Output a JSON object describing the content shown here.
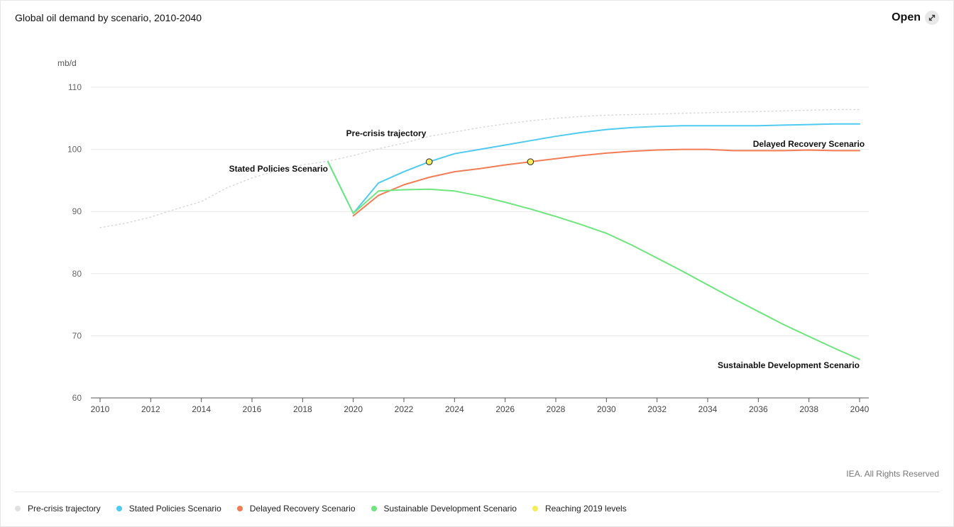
{
  "header": {
    "title": "Global oil demand by scenario, 2010-2040",
    "open_label": "Open"
  },
  "footer": {
    "credit": "IEA. All Rights Reserved"
  },
  "icons": {
    "open": "expand-arrows-icon"
  },
  "chart_data": {
    "type": "line",
    "title": "Global oil demand by scenario, 2010-2040",
    "ylabel": "mb/d",
    "xlabel": "",
    "xlim": [
      2010,
      2040
    ],
    "ylim": [
      60,
      110
    ],
    "xticks": [
      2010,
      2012,
      2014,
      2016,
      2018,
      2020,
      2022,
      2024,
      2026,
      2028,
      2030,
      2032,
      2034,
      2036,
      2038,
      2040
    ],
    "yticks": [
      60,
      70,
      80,
      90,
      100,
      110
    ],
    "grid": "horizontal",
    "legend_position": "bottom",
    "series": [
      {
        "name": "Pre-crisis trajectory",
        "color": "#d9d9d9",
        "style": "dotted",
        "x": [
          2010,
          2011,
          2012,
          2013,
          2014,
          2015,
          2016,
          2017,
          2018,
          2019,
          2020,
          2021,
          2022,
          2023,
          2024,
          2025,
          2026,
          2027,
          2028,
          2029,
          2030,
          2031,
          2032,
          2033,
          2034,
          2035,
          2036,
          2037,
          2038,
          2039,
          2040
        ],
        "y": [
          87.4,
          88.1,
          89.1,
          90.4,
          91.6,
          93.8,
          95.4,
          96.6,
          97.5,
          98.1,
          99.0,
          100.1,
          101.0,
          102.1,
          102.8,
          103.5,
          104.1,
          104.6,
          105.0,
          105.3,
          105.5,
          105.6,
          105.7,
          105.8,
          105.9,
          106.0,
          106.1,
          106.2,
          106.3,
          106.4,
          106.4
        ],
        "label": "Pre-crisis trajectory",
        "label_anchor": [
          2021.3,
          102.1
        ]
      },
      {
        "name": "Stated Policies Scenario",
        "color": "#4fcbf0",
        "style": "solid",
        "x": [
          2019,
          2020,
          2021,
          2022,
          2023,
          2024,
          2025,
          2026,
          2027,
          2028,
          2029,
          2030,
          2031,
          2032,
          2033,
          2034,
          2035,
          2036,
          2037,
          2038,
          2039,
          2040
        ],
        "y": [
          98.0,
          89.7,
          94.6,
          96.4,
          98.0,
          99.3,
          100.0,
          100.7,
          101.4,
          102.1,
          102.7,
          103.2,
          103.5,
          103.7,
          103.8,
          103.8,
          103.8,
          103.8,
          103.9,
          104.0,
          104.1,
          104.1
        ],
        "label": "Stated Policies Scenario",
        "label_anchor": [
          2019.0,
          96.4
        ]
      },
      {
        "name": "Delayed Recovery Scenario",
        "color": "#f27c55",
        "style": "solid",
        "x": [
          2020,
          2021,
          2022,
          2023,
          2024,
          2025,
          2026,
          2027,
          2028,
          2029,
          2030,
          2031,
          2032,
          2033,
          2034,
          2035,
          2036,
          2037,
          2038,
          2039,
          2040
        ],
        "y": [
          89.3,
          92.6,
          94.3,
          95.5,
          96.4,
          96.9,
          97.5,
          98.0,
          98.5,
          99.0,
          99.4,
          99.7,
          99.9,
          100.0,
          100.0,
          99.8,
          99.8,
          99.8,
          99.9,
          99.8,
          99.8
        ],
        "label": "Delayed Recovery Scenario",
        "label_anchor": [
          2040.2,
          100.4
        ]
      },
      {
        "name": "Sustainable Development Scenario",
        "color": "#6ee67d",
        "style": "solid",
        "x": [
          2019,
          2020,
          2021,
          2022,
          2023,
          2024,
          2025,
          2026,
          2027,
          2028,
          2029,
          2030,
          2031,
          2032,
          2033,
          2034,
          2035,
          2036,
          2037,
          2038,
          2039,
          2040
        ],
        "y": [
          98.0,
          89.7,
          93.3,
          93.5,
          93.6,
          93.3,
          92.5,
          91.5,
          90.4,
          89.2,
          87.9,
          86.5,
          84.6,
          82.5,
          80.4,
          78.2,
          76.0,
          73.9,
          71.8,
          69.9,
          68.0,
          66.2
        ],
        "label": "Sustainable Development Scenario",
        "label_anchor": [
          2040.0,
          64.8
        ]
      },
      {
        "name": "Reaching 2019 levels",
        "color": "#f7ec5a",
        "style": "markers",
        "x": [
          2023,
          2027
        ],
        "y": [
          98.0,
          98.0
        ]
      }
    ]
  }
}
